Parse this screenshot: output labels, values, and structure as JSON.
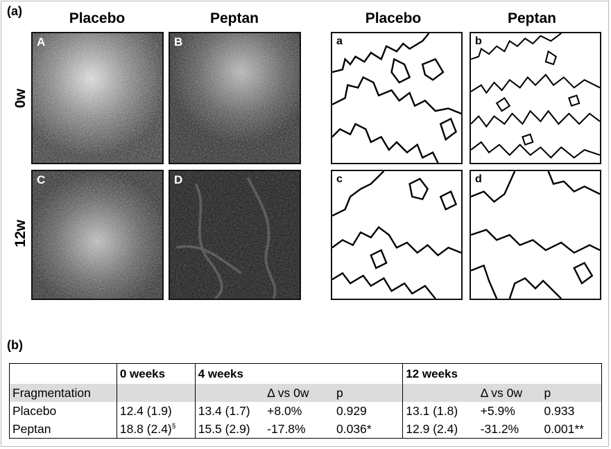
{
  "figure": {
    "panel_a_label": "(a)",
    "panel_b_label": "(b)",
    "col_headers": [
      "Placebo",
      "Peptan",
      "Placebo",
      "Peptan"
    ],
    "row_headers": [
      "0w",
      "12w"
    ],
    "image_letters": [
      "A",
      "B",
      "C",
      "D"
    ],
    "outline_letters": [
      "a",
      "b",
      "c",
      "d"
    ]
  },
  "table": {
    "headers": {
      "w0": "0 weeks",
      "w4": "4 weeks",
      "w12": "12 weeks"
    },
    "subheader": {
      "metric": "Fragmentation",
      "delta4": "Δ vs 0w",
      "p4": "p",
      "delta12": "Δ vs 0w",
      "p12": "p"
    },
    "rows": [
      {
        "group": "Placebo",
        "w0": "12.4 (1.9)",
        "w0_sup": "",
        "w4": "13.4 (1.7)",
        "d4": "+8.0%",
        "p4": "0.929",
        "w12": "13.1 (1.8)",
        "d12": "+5.9%",
        "p12": "0.933"
      },
      {
        "group": "Peptan",
        "w0": "18.8 (2.4)",
        "w0_sup": "§",
        "w4": "15.5 (2.9)",
        "d4": "-17.8%",
        "p4": "0.036*",
        "w12": "12.9 (2.4)",
        "d12": "-31.2%",
        "p12": "0.001**"
      }
    ]
  }
}
